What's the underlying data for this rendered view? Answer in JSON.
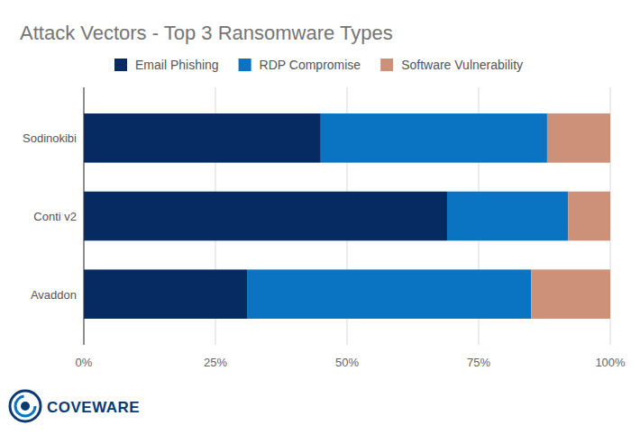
{
  "chart_data": {
    "type": "bar",
    "orientation": "horizontal",
    "stacked": true,
    "title": "Attack Vectors - Top 3 Ransomware Types",
    "categories": [
      "Sodinokibi",
      "Conti v2",
      "Avaddon"
    ],
    "series": [
      {
        "name": "Email Phishing",
        "color": "#062b62",
        "values": [
          45,
          69,
          31
        ]
      },
      {
        "name": "RDP Compromise",
        "color": "#0b74c2",
        "values": [
          43,
          23,
          54
        ]
      },
      {
        "name": "Software Vulnerability",
        "color": "#cc9178",
        "values": [
          12,
          8,
          15
        ]
      }
    ],
    "xlim": [
      0,
      100
    ],
    "xticks": [
      {
        "value": 0,
        "label": "0%"
      },
      {
        "value": 25,
        "label": "25%"
      },
      {
        "value": 50,
        "label": "50%"
      },
      {
        "value": 75,
        "label": "75%"
      },
      {
        "value": 100,
        "label": "100%"
      }
    ],
    "grid": true,
    "legend": "top",
    "annotations": [
      "COVEWARE"
    ]
  }
}
